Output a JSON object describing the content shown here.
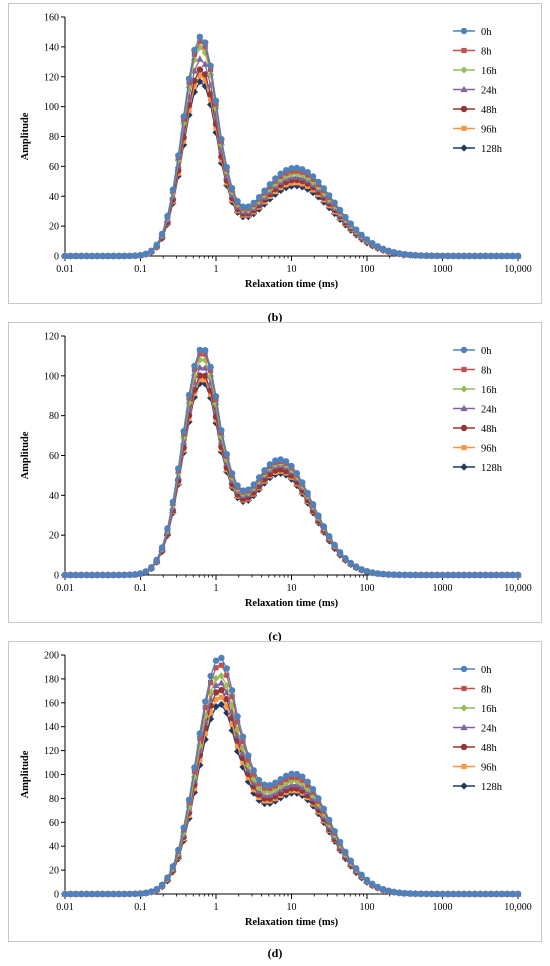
{
  "chart_data": [
    {
      "type": "line",
      "panel_label": "(b)",
      "xlabel": "Relaxation time (ms)",
      "ylabel": "Amplitude",
      "x_scale": "log",
      "xlim": [
        0.01,
        10000
      ],
      "ylim": [
        0,
        160
      ],
      "x_ticks": [
        {
          "value": 0.01,
          "label": "0.01"
        },
        {
          "value": 0.1,
          "label": "0.1"
        },
        {
          "value": 1,
          "label": "1"
        },
        {
          "value": 10,
          "label": "10"
        },
        {
          "value": 100,
          "label": "100"
        },
        {
          "value": 1000,
          "label": "1000"
        },
        {
          "value": 10000,
          "label": "10,000"
        }
      ],
      "y_ticks": [
        0,
        20,
        40,
        60,
        80,
        100,
        120,
        140,
        160
      ],
      "grid": false,
      "legend_position": "right",
      "series": [
        {
          "name": "0h",
          "color": "#4f81bd",
          "marker": "circle",
          "peak": 147,
          "shoulder": 59
        },
        {
          "name": "8h",
          "color": "#c0504d",
          "marker": "square",
          "peak": 144,
          "shoulder": 57
        },
        {
          "name": "16h",
          "color": "#9bbb59",
          "marker": "diamond",
          "peak": 140,
          "shoulder": 55
        },
        {
          "name": "24h",
          "color": "#8064a2",
          "marker": "triangle",
          "peak": 132,
          "shoulder": 53
        },
        {
          "name": "48h",
          "color": "#943634",
          "marker": "circle",
          "peak": 125,
          "shoulder": 51
        },
        {
          "name": "96h",
          "color": "#f79646",
          "marker": "square",
          "peak": 121,
          "shoulder": 49
        },
        {
          "name": "128h",
          "color": "#1f3864",
          "marker": "diamond",
          "peak": 117,
          "shoulder": 47
        }
      ]
    },
    {
      "type": "line",
      "panel_label": "(c)",
      "xlabel": "Relaxation time (ms)",
      "ylabel": "Amplitude",
      "x_scale": "log",
      "xlim": [
        0.01,
        10000
      ],
      "ylim": [
        0,
        120
      ],
      "x_ticks": [
        {
          "value": 0.01,
          "label": "0.01"
        },
        {
          "value": 0.1,
          "label": "0.1"
        },
        {
          "value": 1,
          "label": "1"
        },
        {
          "value": 10,
          "label": "10"
        },
        {
          "value": 100,
          "label": "100"
        },
        {
          "value": 1000,
          "label": "1000"
        },
        {
          "value": 10000,
          "label": "10,000"
        }
      ],
      "y_ticks": [
        0,
        20,
        40,
        60,
        80,
        100,
        120
      ],
      "grid": false,
      "legend_position": "right",
      "series": [
        {
          "name": "0h",
          "color": "#4f81bd",
          "marker": "circle",
          "peak": 114,
          "shoulder": 58
        },
        {
          "name": "8h",
          "color": "#c0504d",
          "marker": "square",
          "peak": 112,
          "shoulder": 57
        },
        {
          "name": "16h",
          "color": "#9bbb59",
          "marker": "diamond",
          "peak": 109,
          "shoulder": 56
        },
        {
          "name": "24h",
          "color": "#8064a2",
          "marker": "triangle",
          "peak": 105,
          "shoulder": 55
        },
        {
          "name": "48h",
          "color": "#943634",
          "marker": "circle",
          "peak": 101,
          "shoulder": 53
        },
        {
          "name": "96h",
          "color": "#f79646",
          "marker": "square",
          "peak": 99,
          "shoulder": 52
        },
        {
          "name": "128h",
          "color": "#1f3864",
          "marker": "diamond",
          "peak": 97,
          "shoulder": 51
        }
      ]
    },
    {
      "type": "line",
      "panel_label": "(d)",
      "xlabel": "Relaxation time (ms)",
      "ylabel": "Amplitude",
      "x_scale": "log",
      "xlim": [
        0.01,
        10000
      ],
      "ylim": [
        0,
        200
      ],
      "x_ticks": [
        {
          "value": 0.01,
          "label": "0.01"
        },
        {
          "value": 0.1,
          "label": "0.1"
        },
        {
          "value": 1,
          "label": "1"
        },
        {
          "value": 10,
          "label": "10"
        },
        {
          "value": 100,
          "label": "100"
        },
        {
          "value": 1000,
          "label": "1000"
        },
        {
          "value": 10000,
          "label": "10,000"
        }
      ],
      "y_ticks": [
        0,
        20,
        40,
        60,
        80,
        100,
        120,
        140,
        160,
        180,
        200
      ],
      "grid": false,
      "legend_position": "right",
      "series": [
        {
          "name": "0h",
          "color": "#4f81bd",
          "marker": "circle",
          "peak": 198,
          "shoulder": 100
        },
        {
          "name": "8h",
          "color": "#c0504d",
          "marker": "square",
          "peak": 192,
          "shoulder": 97
        },
        {
          "name": "16h",
          "color": "#9bbb59",
          "marker": "diamond",
          "peak": 183,
          "shoulder": 94
        },
        {
          "name": "24h",
          "color": "#8064a2",
          "marker": "triangle",
          "peak": 177,
          "shoulder": 91
        },
        {
          "name": "48h",
          "color": "#943634",
          "marker": "circle",
          "peak": 171,
          "shoulder": 88
        },
        {
          "name": "96h",
          "color": "#f79646",
          "marker": "square",
          "peak": 165,
          "shoulder": 86
        },
        {
          "name": "128h",
          "color": "#1f3864",
          "marker": "diamond",
          "peak": 159,
          "shoulder": 84
        }
      ]
    }
  ]
}
